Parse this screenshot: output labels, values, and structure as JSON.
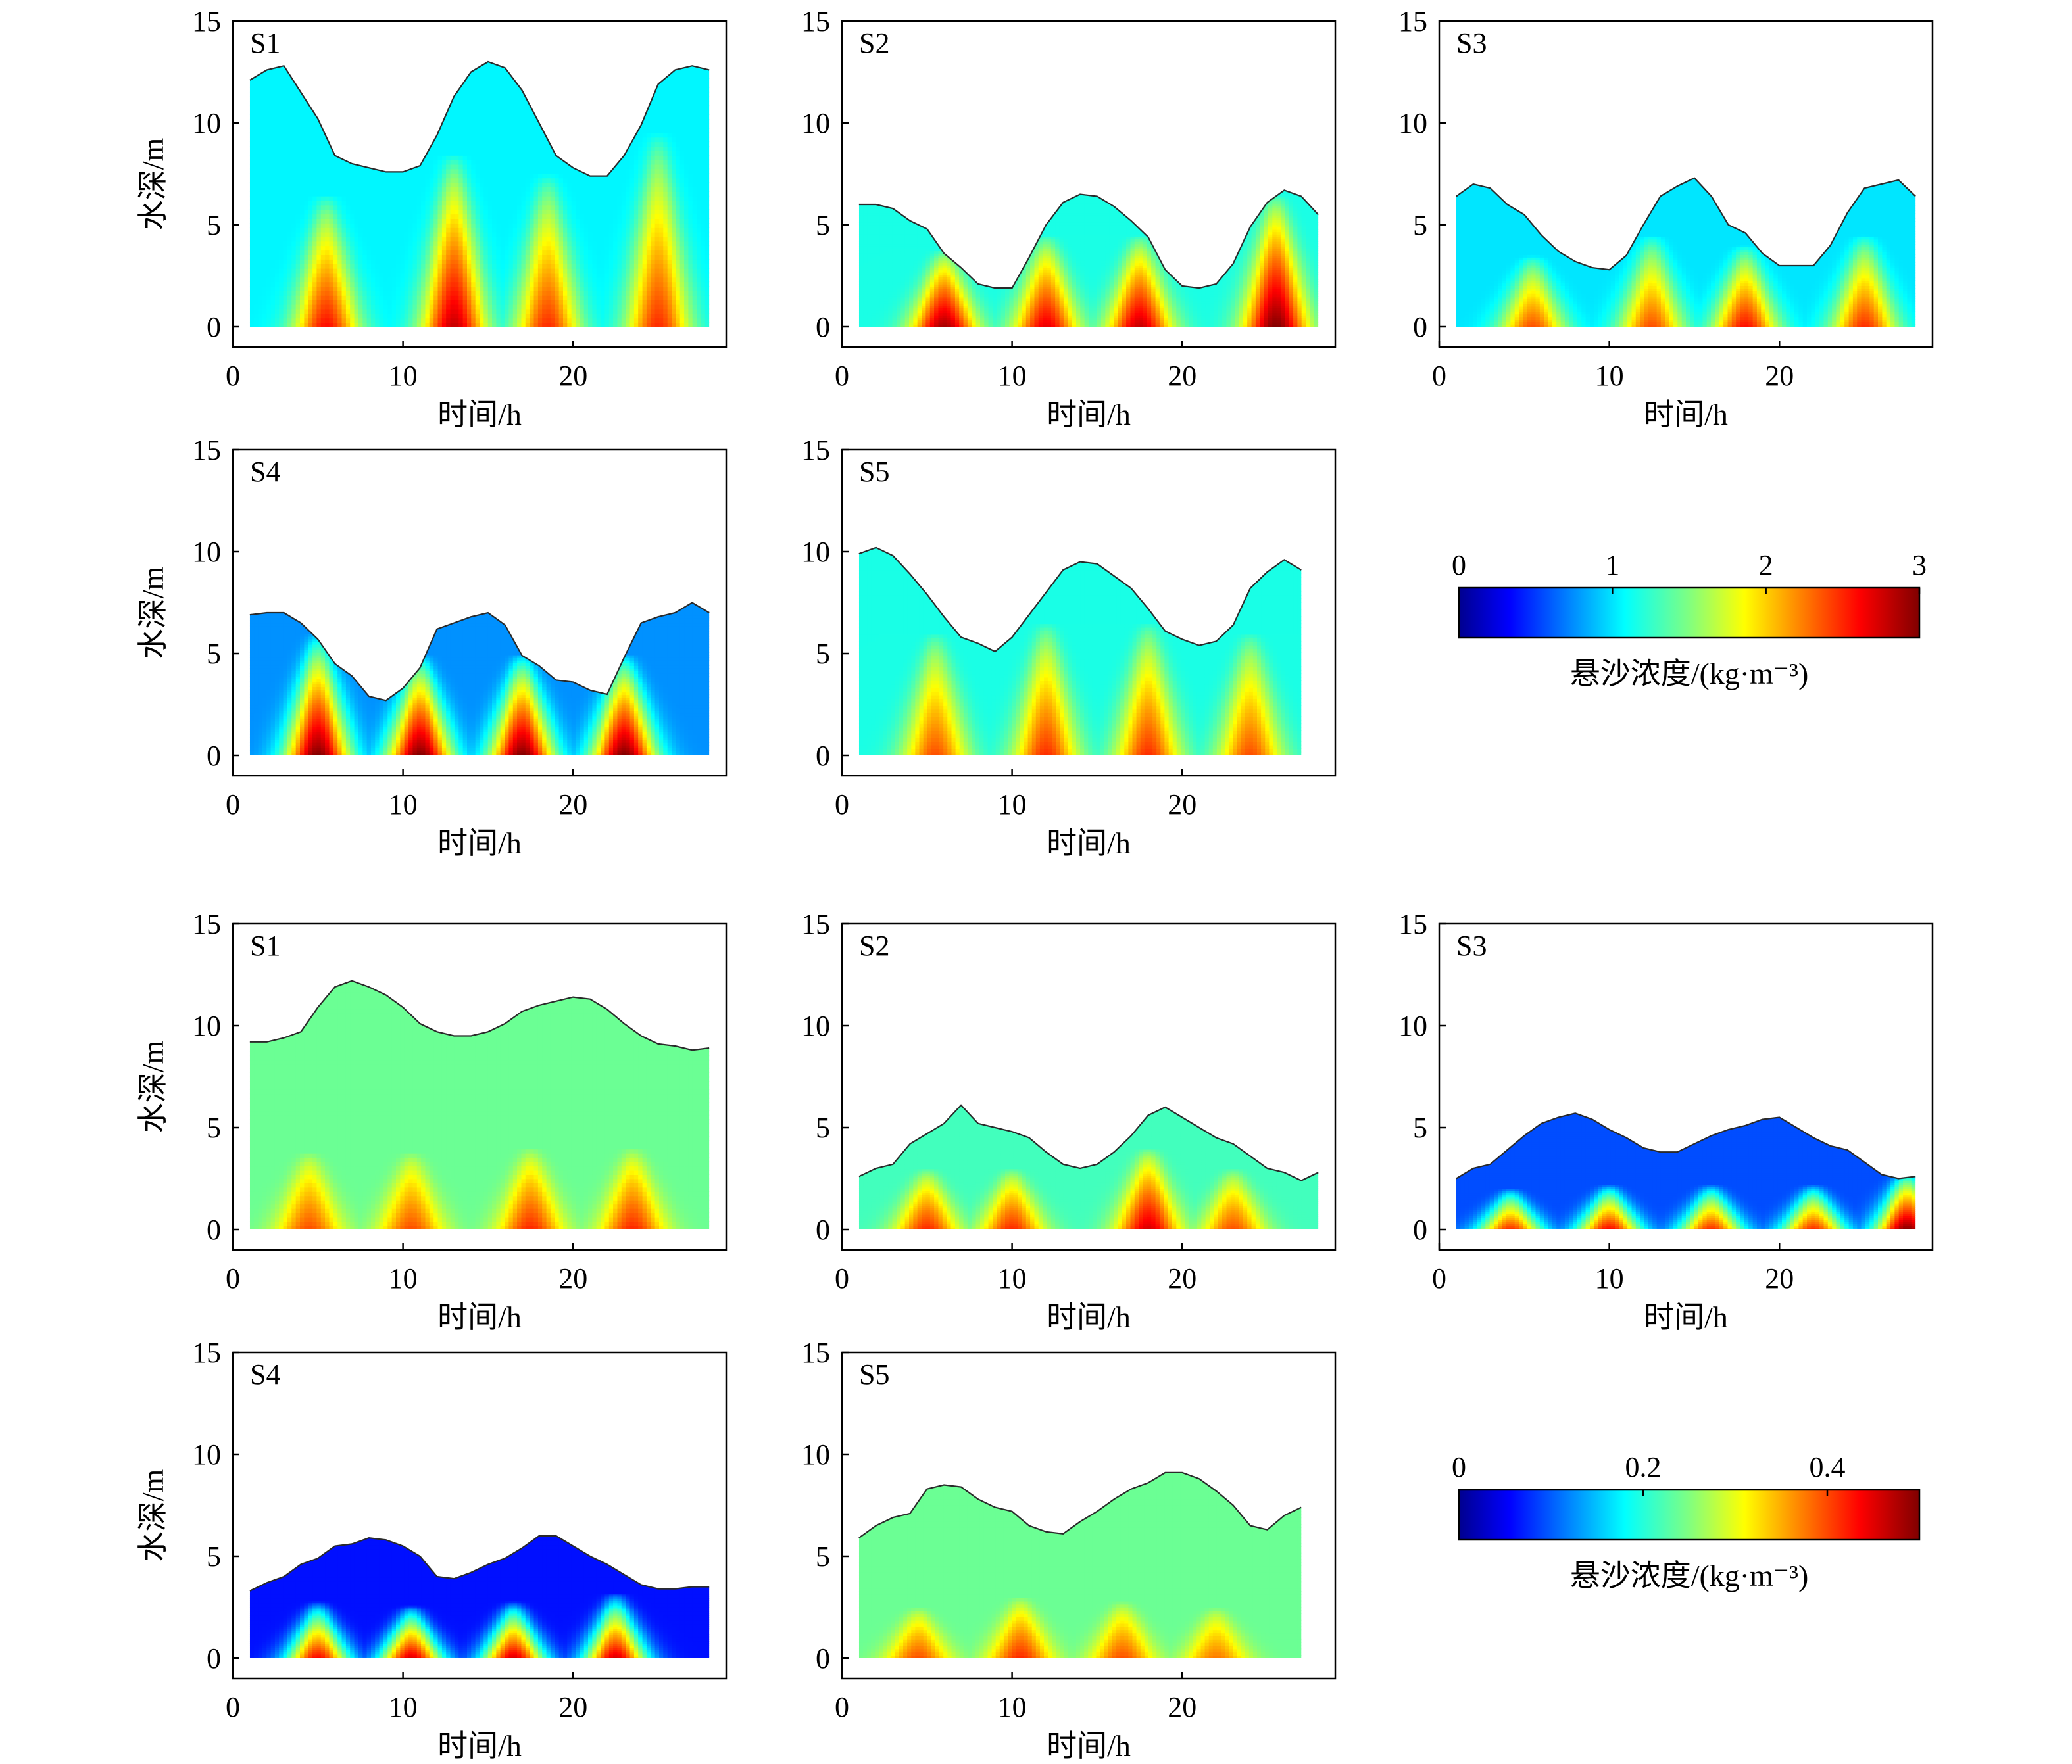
{
  "chart_data": [
    {
      "type": "heatmap",
      "group": 1,
      "panel_label": "S1",
      "xlabel": "时间/h",
      "ylabel": "水深/m",
      "xlim": [
        0,
        29
      ],
      "ylim": [
        -1,
        15
      ],
      "xticks": [
        "0",
        "10",
        "20"
      ],
      "yticks": [
        "0",
        "5",
        "10",
        "15"
      ],
      "surface_depth": {
        "x": [
          1,
          2,
          3,
          4,
          5,
          6,
          7,
          8,
          9,
          10,
          11,
          12,
          13,
          14,
          15,
          16,
          17,
          18,
          19,
          20,
          21,
          22,
          23,
          24,
          25,
          26,
          27,
          28
        ],
        "y": [
          12.1,
          12.6,
          12.8,
          11.5,
          10.2,
          8.4,
          8.0,
          7.8,
          7.6,
          7.6,
          7.9,
          9.4,
          11.3,
          12.5,
          13.0,
          12.7,
          11.6,
          10.0,
          8.4,
          7.8,
          7.4,
          7.4,
          8.4,
          9.9,
          11.9,
          12.6,
          12.8,
          12.6
        ]
      },
      "concentration_peaks_h": [
        5.5,
        13,
        18.5,
        25
      ],
      "concentration_peak_values": [
        2.6,
        2.8,
        2.5,
        2.5
      ],
      "concentration_peak_heights_m": [
        6.5,
        8.5,
        7.5,
        9.5
      ],
      "concentration_background": 1.1,
      "colorbar_range": [
        0,
        3
      ]
    },
    {
      "type": "heatmap",
      "group": 1,
      "panel_label": "S2",
      "xlabel": "时间/h",
      "ylabel": "水深/m",
      "xlim": [
        0,
        29
      ],
      "ylim": [
        -1,
        15
      ],
      "xticks": [
        "0",
        "10",
        "20"
      ],
      "yticks": [
        "0",
        "5",
        "10",
        "15"
      ],
      "surface_depth": {
        "x": [
          1,
          2,
          3,
          4,
          5,
          6,
          7,
          8,
          9,
          10,
          11,
          12,
          13,
          14,
          15,
          16,
          17,
          18,
          19,
          20,
          21,
          22,
          23,
          24,
          25,
          26,
          27,
          28
        ],
        "y": [
          6.0,
          6.0,
          5.8,
          5.2,
          4.8,
          3.6,
          2.9,
          2.1,
          1.9,
          1.9,
          3.4,
          5.0,
          6.1,
          6.5,
          6.4,
          5.9,
          5.2,
          4.4,
          2.8,
          2.0,
          1.9,
          2.1,
          3.1,
          4.9,
          6.1,
          6.7,
          6.4,
          5.5
        ]
      },
      "concentration_peaks_h": [
        6,
        12,
        17.5,
        25.5
      ],
      "concentration_peak_values": [
        2.9,
        2.7,
        2.8,
        3.0
      ],
      "concentration_peak_heights_m": [
        3.8,
        4.5,
        4.5,
        6.5
      ],
      "concentration_background": 1.2,
      "colorbar_range": [
        0,
        3
      ]
    },
    {
      "type": "heatmap",
      "group": 1,
      "panel_label": "S3",
      "xlabel": "时间/h",
      "ylabel": "水深/m",
      "xlim": [
        0,
        29
      ],
      "ylim": [
        -1,
        15
      ],
      "xticks": [
        "0",
        "10",
        "20"
      ],
      "yticks": [
        "0",
        "5",
        "10",
        "15"
      ],
      "surface_depth": {
        "x": [
          1,
          2,
          3,
          4,
          5,
          6,
          7,
          8,
          9,
          10,
          11,
          12,
          13,
          14,
          15,
          16,
          17,
          18,
          19,
          20,
          21,
          22,
          23,
          24,
          25,
          26,
          27,
          28
        ],
        "y": [
          6.4,
          7.0,
          6.8,
          6.0,
          5.5,
          4.5,
          3.7,
          3.2,
          2.9,
          2.8,
          3.5,
          5.0,
          6.4,
          6.9,
          7.3,
          6.4,
          5.0,
          4.6,
          3.6,
          3.0,
          3.0,
          3.0,
          4.0,
          5.6,
          6.8,
          7.0,
          7.2,
          6.4
        ]
      },
      "concentration_peaks_h": [
        5.5,
        12.5,
        18,
        25
      ],
      "concentration_peak_values": [
        2.4,
        2.4,
        2.6,
        2.5
      ],
      "concentration_peak_heights_m": [
        3.5,
        4.5,
        4.0,
        4.5
      ],
      "concentration_background": 1.05,
      "colorbar_range": [
        0,
        3
      ]
    },
    {
      "type": "heatmap",
      "group": 1,
      "panel_label": "S4",
      "xlabel": "时间/h",
      "ylabel": "水深/m",
      "xlim": [
        0,
        29
      ],
      "ylim": [
        -1,
        15
      ],
      "xticks": [
        "0",
        "10",
        "20"
      ],
      "yticks": [
        "0",
        "5",
        "10",
        "15"
      ],
      "surface_depth": {
        "x": [
          1,
          2,
          3,
          4,
          5,
          6,
          7,
          8,
          9,
          10,
          11,
          12,
          13,
          14,
          15,
          16,
          17,
          18,
          19,
          20,
          21,
          22,
          23,
          24,
          25,
          26,
          27,
          28
        ],
        "y": [
          6.9,
          7.0,
          7.0,
          6.5,
          5.7,
          4.5,
          3.9,
          2.9,
          2.7,
          3.3,
          4.3,
          6.2,
          6.5,
          6.8,
          7.0,
          6.4,
          4.9,
          4.4,
          3.7,
          3.6,
          3.2,
          3.0,
          4.8,
          6.5,
          6.8,
          7.0,
          7.5,
          7.0
        ]
      },
      "concentration_peaks_h": [
        5,
        11,
        17,
        23
      ],
      "concentration_peak_values": [
        3.0,
        3.0,
        3.0,
        3.0
      ],
      "concentration_peak_heights_m": [
        6.0,
        5.0,
        5.0,
        5.0
      ],
      "concentration_background": 0.8,
      "colorbar_range": [
        0,
        3
      ]
    },
    {
      "type": "heatmap",
      "group": 1,
      "panel_label": "S5",
      "xlabel": "时间/h",
      "ylabel": "水深/m",
      "xlim": [
        0,
        29
      ],
      "ylim": [
        -1,
        15
      ],
      "xticks": [
        "0",
        "10",
        "20"
      ],
      "yticks": [
        "0",
        "5",
        "10",
        "15"
      ],
      "surface_depth": {
        "x": [
          1,
          2,
          3,
          4,
          5,
          6,
          7,
          8,
          9,
          10,
          11,
          12,
          13,
          14,
          15,
          16,
          17,
          18,
          19,
          20,
          21,
          22,
          23,
          24,
          25,
          26,
          27
        ],
        "y": [
          9.9,
          10.2,
          9.8,
          8.9,
          7.9,
          6.8,
          5.8,
          5.5,
          5.1,
          5.8,
          6.9,
          8.0,
          9.1,
          9.5,
          9.4,
          8.8,
          8.2,
          7.2,
          6.1,
          5.7,
          5.4,
          5.6,
          6.4,
          8.2,
          9.0,
          9.6,
          9.1
        ]
      },
      "concentration_peaks_h": [
        5.5,
        12,
        18,
        24
      ],
      "concentration_peak_values": [
        2.4,
        2.5,
        2.5,
        2.4
      ],
      "concentration_peak_heights_m": [
        6.0,
        6.5,
        6.5,
        6.0
      ],
      "concentration_background": 1.2,
      "colorbar_range": [
        0,
        3
      ]
    },
    {
      "type": "heatmap",
      "group": 2,
      "panel_label": "S1",
      "xlabel": "时间/h",
      "ylabel": "水深/m",
      "xlim": [
        0,
        29
      ],
      "ylim": [
        -1,
        15
      ],
      "xticks": [
        "0",
        "10",
        "20"
      ],
      "yticks": [
        "0",
        "5",
        "10",
        "15"
      ],
      "surface_depth": {
        "x": [
          1,
          2,
          3,
          4,
          5,
          6,
          7,
          8,
          9,
          10,
          11,
          12,
          13,
          14,
          15,
          16,
          17,
          18,
          19,
          20,
          21,
          22,
          23,
          24,
          25,
          26,
          27,
          28
        ],
        "y": [
          9.2,
          9.2,
          9.4,
          9.7,
          10.9,
          11.9,
          12.2,
          11.9,
          11.5,
          10.9,
          10.1,
          9.7,
          9.5,
          9.5,
          9.7,
          10.1,
          10.7,
          11.0,
          11.2,
          11.4,
          11.3,
          10.8,
          10.1,
          9.5,
          9.1,
          9.0,
          8.8,
          8.9
        ]
      },
      "concentration_peaks_h": [
        4.5,
        10.5,
        17.5,
        23.5
      ],
      "concentration_peak_values": [
        0.4,
        0.4,
        0.42,
        0.42
      ],
      "concentration_peak_heights_m": [
        3.8,
        3.8,
        4.0,
        4.0
      ],
      "concentration_background": 0.24,
      "colorbar_range": [
        0,
        0.5
      ]
    },
    {
      "type": "heatmap",
      "group": 2,
      "panel_label": "S2",
      "xlabel": "时间/h",
      "ylabel": "水深/m",
      "xlim": [
        0,
        29
      ],
      "ylim": [
        -1,
        15
      ],
      "xticks": [
        "0",
        "10",
        "20"
      ],
      "yticks": [
        "0",
        "5",
        "10",
        "15"
      ],
      "surface_depth": {
        "x": [
          1,
          2,
          3,
          4,
          5,
          6,
          7,
          8,
          9,
          10,
          11,
          12,
          13,
          14,
          15,
          16,
          17,
          18,
          19,
          20,
          21,
          22,
          23,
          24,
          25,
          26,
          27,
          28
        ],
        "y": [
          2.6,
          3.0,
          3.2,
          4.2,
          4.7,
          5.2,
          6.1,
          5.2,
          5.0,
          4.8,
          4.5,
          3.8,
          3.2,
          3.0,
          3.2,
          3.8,
          4.6,
          5.6,
          6.0,
          5.5,
          5.0,
          4.5,
          4.2,
          3.6,
          3.0,
          2.8,
          2.4,
          2.8
        ]
      },
      "concentration_peaks_h": [
        5,
        10,
        18,
        23
      ],
      "concentration_peak_values": [
        0.42,
        0.42,
        0.46,
        0.4
      ],
      "concentration_peak_heights_m": [
        3.0,
        3.0,
        4.0,
        3.0
      ],
      "concentration_background": 0.22,
      "colorbar_range": [
        0,
        0.5
      ]
    },
    {
      "type": "heatmap",
      "group": 2,
      "panel_label": "S3",
      "xlabel": "时间/h",
      "ylabel": "水深/m",
      "xlim": [
        0,
        29
      ],
      "ylim": [
        -1,
        15
      ],
      "xticks": [
        "0",
        "10",
        "20"
      ],
      "yticks": [
        "0",
        "5",
        "10",
        "15"
      ],
      "surface_depth": {
        "x": [
          1,
          2,
          3,
          4,
          5,
          6,
          7,
          8,
          9,
          10,
          11,
          12,
          13,
          14,
          15,
          16,
          17,
          18,
          19,
          20,
          21,
          22,
          23,
          24,
          25,
          26,
          27,
          28
        ],
        "y": [
          2.5,
          3.0,
          3.2,
          3.9,
          4.6,
          5.2,
          5.5,
          5.7,
          5.4,
          4.9,
          4.5,
          4.0,
          3.8,
          3.8,
          4.2,
          4.6,
          4.9,
          5.1,
          5.4,
          5.5,
          5.0,
          4.5,
          4.1,
          3.9,
          3.3,
          2.7,
          2.5,
          2.6
        ]
      },
      "concentration_peaks_h": [
        4.2,
        10,
        16,
        22,
        27.5
      ],
      "concentration_peak_values": [
        0.42,
        0.44,
        0.42,
        0.42,
        0.5
      ],
      "concentration_peak_heights_m": [
        2.0,
        2.2,
        2.2,
        2.2,
        3.0
      ],
      "concentration_background": 0.1,
      "colorbar_range": [
        0,
        0.5
      ]
    },
    {
      "type": "heatmap",
      "group": 2,
      "panel_label": "S4",
      "xlabel": "时间/h",
      "ylabel": "水深/m",
      "xlim": [
        0,
        29
      ],
      "ylim": [
        -1,
        15
      ],
      "xticks": [
        "0",
        "10",
        "20"
      ],
      "yticks": [
        "0",
        "5",
        "10",
        "15"
      ],
      "surface_depth": {
        "x": [
          1,
          2,
          3,
          4,
          5,
          6,
          7,
          8,
          9,
          10,
          11,
          12,
          13,
          14,
          15,
          16,
          17,
          18,
          19,
          20,
          21,
          22,
          23,
          24,
          25,
          26,
          27,
          28
        ],
        "y": [
          3.3,
          3.7,
          4.0,
          4.6,
          4.9,
          5.5,
          5.6,
          5.9,
          5.8,
          5.5,
          5.0,
          4.0,
          3.9,
          4.2,
          4.6,
          4.9,
          5.4,
          6.0,
          6.0,
          5.5,
          5.0,
          4.6,
          4.1,
          3.6,
          3.4,
          3.4,
          3.5,
          3.5
        ]
      },
      "concentration_peaks_h": [
        5,
        10.5,
        16.5,
        22.5
      ],
      "concentration_peak_values": [
        0.44,
        0.46,
        0.46,
        0.46
      ],
      "concentration_peak_heights_m": [
        2.8,
        2.6,
        2.8,
        3.2
      ],
      "concentration_background": 0.07,
      "colorbar_range": [
        0,
        0.5
      ]
    },
    {
      "type": "heatmap",
      "group": 2,
      "panel_label": "S5",
      "xlabel": "时间/h",
      "ylabel": "水深/m",
      "xlim": [
        0,
        29
      ],
      "ylim": [
        -1,
        15
      ],
      "xticks": [
        "0",
        "10",
        "20"
      ],
      "yticks": [
        "0",
        "5",
        "10",
        "15"
      ],
      "surface_depth": {
        "x": [
          1,
          2,
          3,
          4,
          5,
          6,
          7,
          8,
          9,
          10,
          11,
          12,
          13,
          14,
          15,
          16,
          17,
          18,
          19,
          20,
          21,
          22,
          23,
          24,
          25,
          26,
          27
        ],
        "y": [
          5.9,
          6.5,
          6.9,
          7.1,
          8.3,
          8.5,
          8.4,
          7.8,
          7.4,
          7.2,
          6.5,
          6.2,
          6.1,
          6.7,
          7.2,
          7.8,
          8.3,
          8.6,
          9.1,
          9.1,
          8.8,
          8.2,
          7.5,
          6.5,
          6.3,
          7.0,
          7.4
        ]
      },
      "concentration_peaks_h": [
        4.5,
        10.5,
        16.5,
        22
      ],
      "concentration_peak_values": [
        0.4,
        0.42,
        0.4,
        0.38
      ],
      "concentration_peak_heights_m": [
        2.5,
        3.0,
        2.8,
        2.5
      ],
      "concentration_background": 0.24,
      "colorbar_range": [
        0,
        0.5
      ]
    }
  ],
  "colorbars": [
    {
      "group": 1,
      "label": "悬沙浓度/(kg·m⁻³)",
      "range": [
        0,
        3
      ],
      "ticks": [
        0,
        1,
        2,
        3
      ],
      "tick_labels": [
        "0",
        "1",
        "2",
        "3"
      ],
      "colormap": "jet"
    },
    {
      "group": 2,
      "label": "悬沙浓度/(kg·m⁻³)",
      "range": [
        0,
        0.5
      ],
      "ticks": [
        0,
        0.2,
        0.4
      ],
      "tick_labels": [
        "0",
        "0.2",
        "0.4"
      ],
      "colormap": "jet"
    }
  ]
}
